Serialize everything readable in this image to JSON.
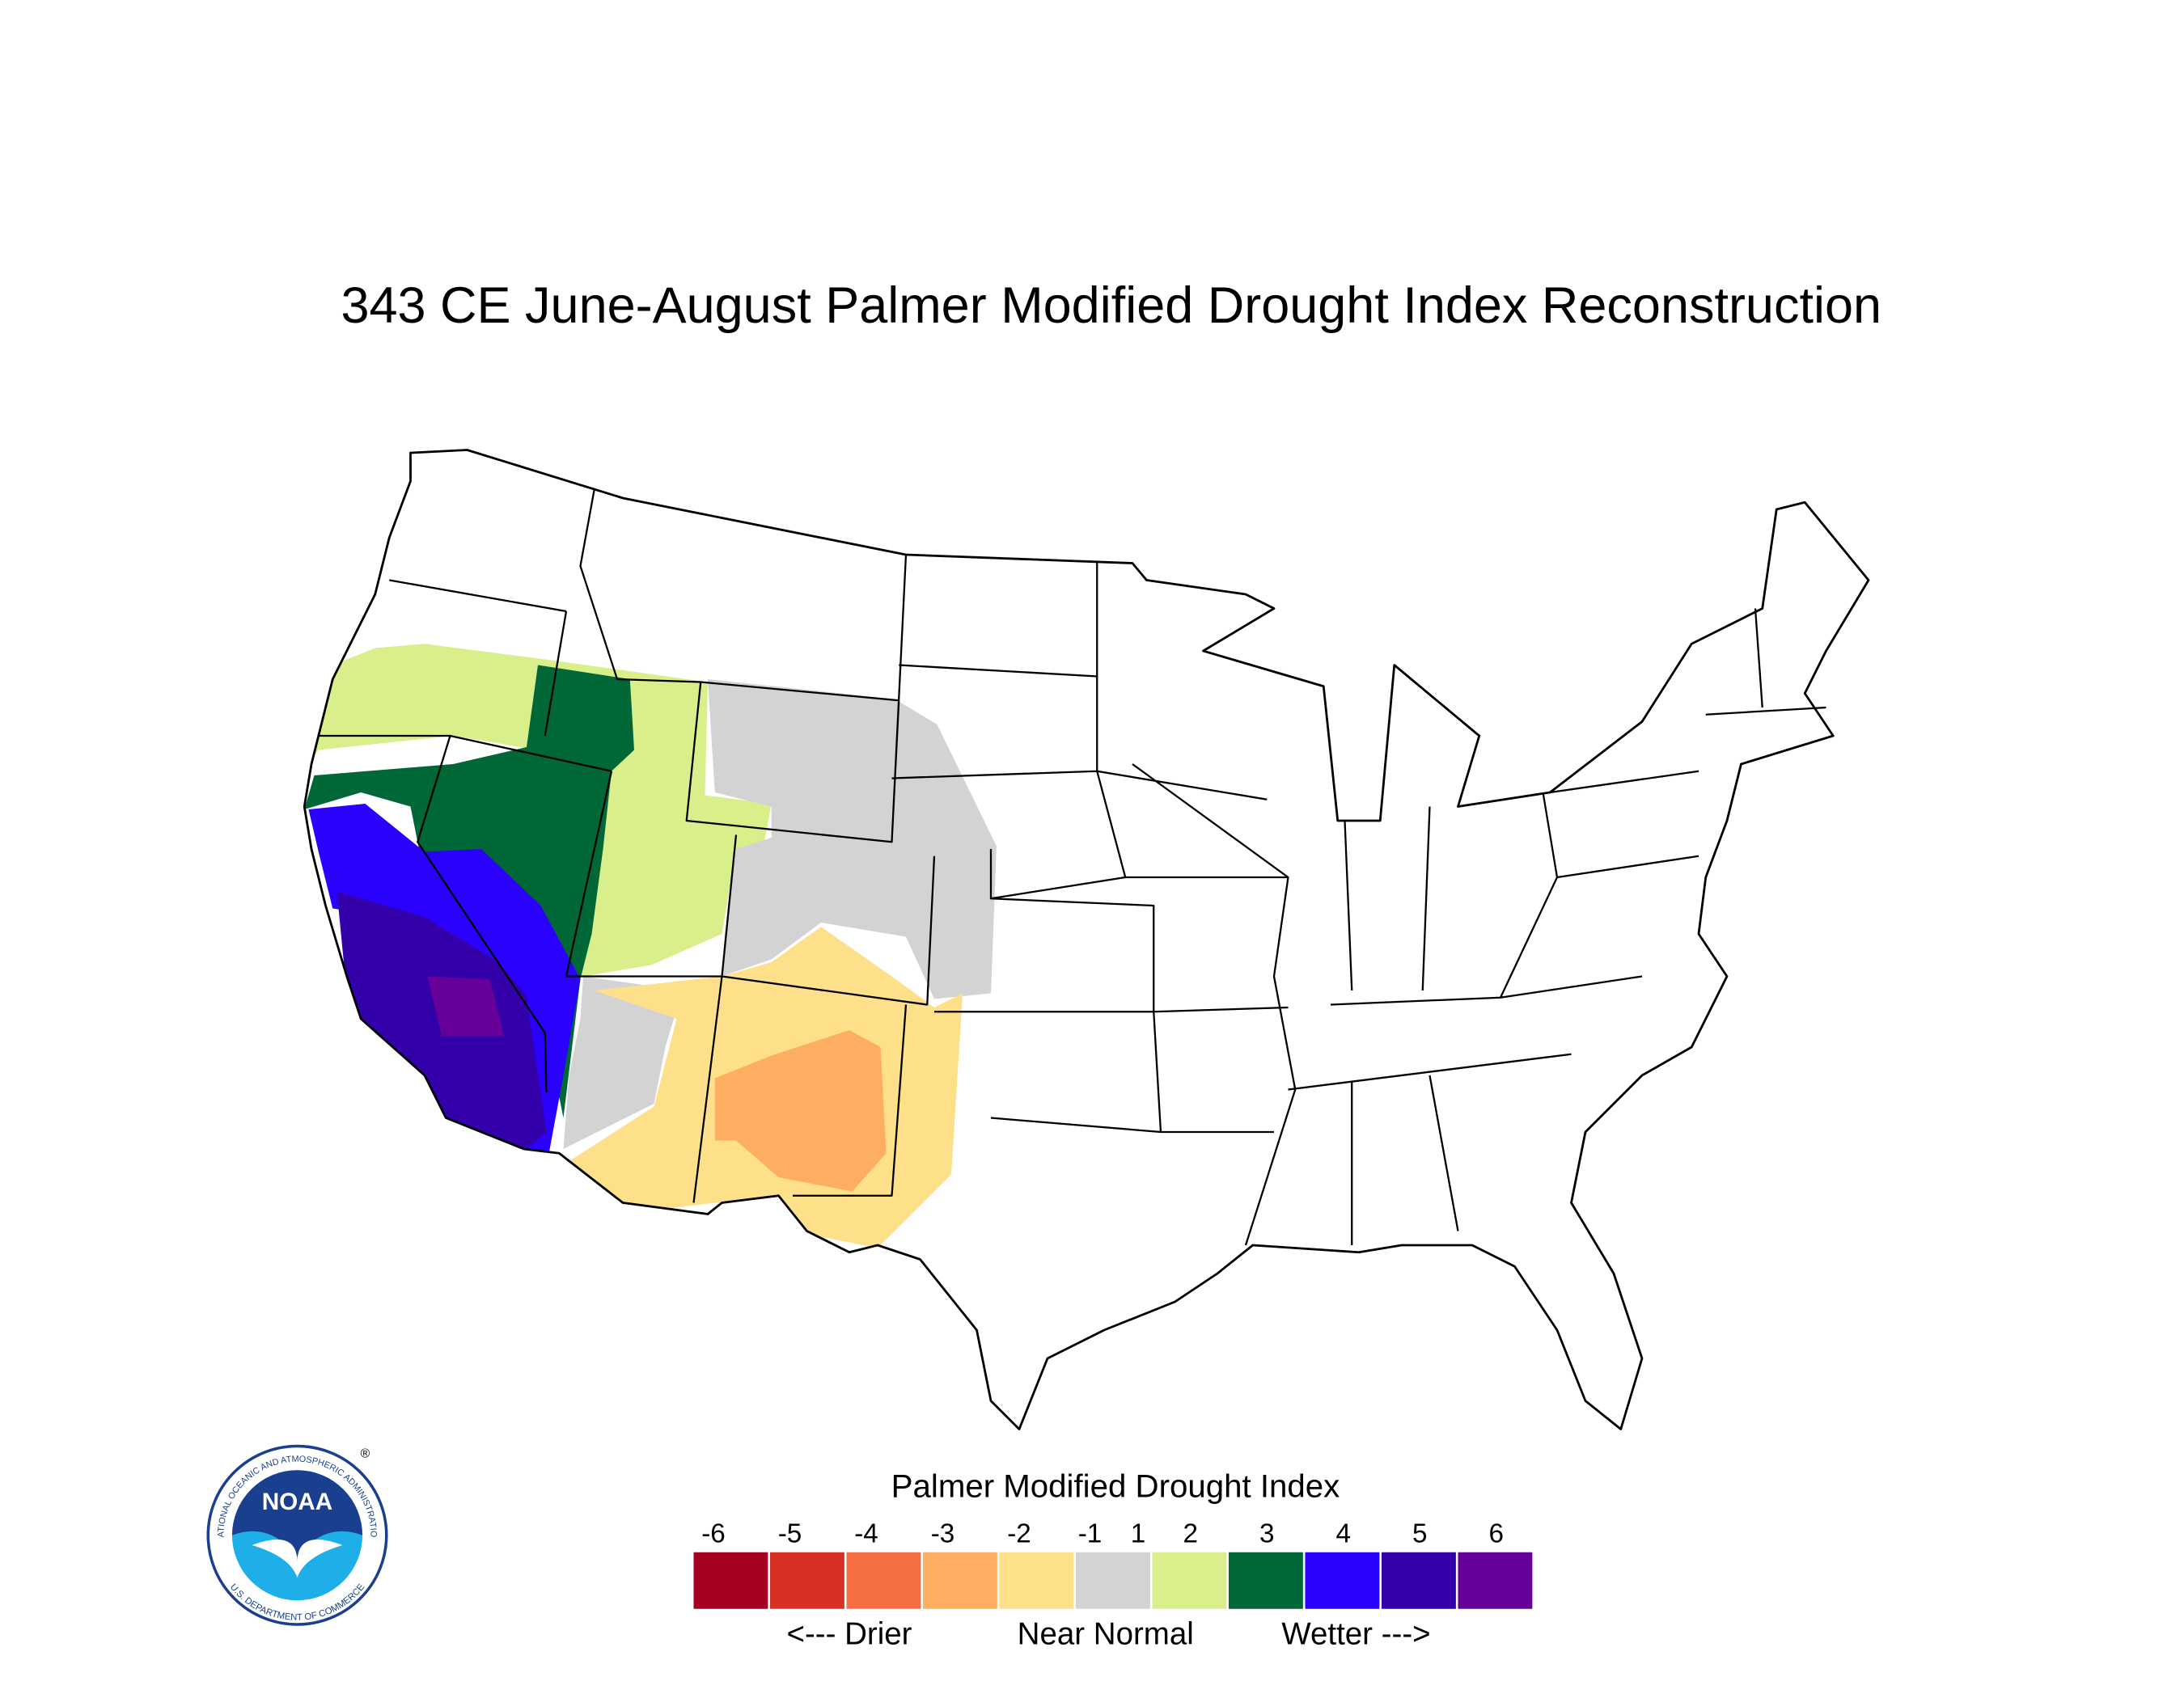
{
  "title": "343 CE  June-August  Palmer Modified Drought Index Reconstruction",
  "legend": {
    "title": "Palmer Modified Drought Index",
    "ticks": [
      -6,
      -5,
      -4,
      -3,
      -2,
      -1,
      1,
      2,
      3,
      4,
      5,
      6
    ],
    "colors": [
      "#a50021",
      "#d73027",
      "#f46d43",
      "#fdae61",
      "#fee08b",
      "#d3d3d3",
      "#d9ef8b",
      "#006837",
      "#2a00ff",
      "#3300aa",
      "#660099"
    ],
    "notes": [
      "<--- Drier",
      "Near Normal",
      "Wetter --->"
    ]
  },
  "logo": {
    "name": "NOAA",
    "ring_top": "NATIONAL OCEANIC AND ATMOSPHERIC ADMINISTRATION",
    "ring_bottom": "U.S. DEPARTMENT OF COMMERCE",
    "mark": "®"
  }
}
